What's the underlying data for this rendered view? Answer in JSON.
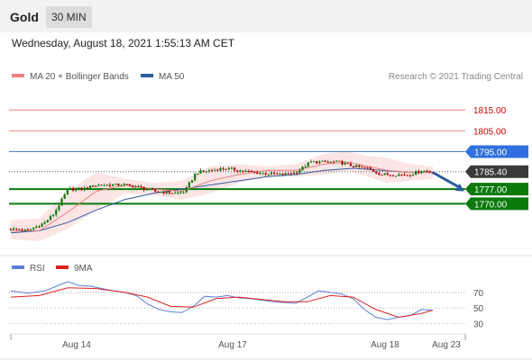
{
  "header": {
    "symbol": "Gold",
    "timeframe": "30 MIN"
  },
  "timestamp": "Wednesday, August 18, 2021 1:55:13 AM CET",
  "legend": {
    "main": [
      {
        "label": "MA 20 + Bollinger Bands",
        "color": "#f08080"
      },
      {
        "label": "MA 50",
        "color": "#2e5d9e"
      }
    ],
    "rsi": [
      {
        "label": "RSI",
        "color": "#5b7fd6"
      },
      {
        "label": "9MA",
        "color": "#e02020"
      }
    ]
  },
  "copyright": "Research © 2021 Trading Central",
  "colors": {
    "resistance": "#f08080",
    "resistance_text": "#cc0000",
    "pivot": "#4a7fd6",
    "support": "#0a7a0a",
    "last": "#3a3a3a",
    "candle_up": "#0a7a0a",
    "candle_down": "#aa0000",
    "arrow": "#2e5d9e"
  },
  "chart_data": [
    {
      "type": "line",
      "title": "",
      "ylim": [
        1752,
        1822
      ],
      "x_ticks": [
        "Aug 14",
        "Aug 17",
        "Aug 18",
        "Aug 23"
      ],
      "levels": [
        {
          "value": 1815.0,
          "label": "1815.00",
          "kind": "resistance"
        },
        {
          "value": 1805.0,
          "label": "1805.00",
          "kind": "resistance"
        },
        {
          "value": 1795.0,
          "label": "1795.00",
          "kind": "pivot"
        },
        {
          "value": 1785.4,
          "label": "1785.40",
          "kind": "last"
        },
        {
          "value": 1777.0,
          "label": "1777.00",
          "kind": "support"
        },
        {
          "value": 1770.0,
          "label": "1770.00",
          "kind": "support"
        }
      ],
      "price_path": [
        [
          0,
          1758
        ],
        [
          6,
          1757
        ],
        [
          12,
          1761
        ],
        [
          15,
          1765
        ],
        [
          18,
          1772
        ],
        [
          20,
          1777
        ],
        [
          25,
          1777
        ],
        [
          30,
          1779
        ],
        [
          40,
          1779
        ],
        [
          45,
          1778
        ],
        [
          50,
          1776
        ],
        [
          58,
          1775
        ],
        [
          61,
          1776
        ],
        [
          65,
          1785
        ],
        [
          75,
          1787
        ],
        [
          85,
          1785
        ],
        [
          95,
          1784
        ],
        [
          100,
          1785
        ],
        [
          105,
          1790
        ],
        [
          115,
          1790
        ],
        [
          120,
          1788
        ],
        [
          125,
          1787
        ],
        [
          130,
          1784
        ],
        [
          140,
          1784
        ],
        [
          144,
          1786
        ],
        [
          148,
          1785
        ]
      ],
      "ma20": [
        [
          0,
          1757
        ],
        [
          10,
          1757
        ],
        [
          20,
          1766
        ],
        [
          30,
          1776
        ],
        [
          40,
          1779
        ],
        [
          50,
          1777
        ],
        [
          60,
          1776
        ],
        [
          70,
          1781
        ],
        [
          80,
          1784
        ],
        [
          90,
          1786
        ],
        [
          100,
          1786
        ],
        [
          110,
          1789
        ],
        [
          118,
          1790
        ],
        [
          125,
          1788
        ],
        [
          132,
          1786
        ],
        [
          140,
          1785
        ],
        [
          148,
          1785
        ]
      ],
      "bollinger_upper": [
        [
          0,
          1762
        ],
        [
          10,
          1763
        ],
        [
          20,
          1776
        ],
        [
          30,
          1785
        ],
        [
          40,
          1782
        ],
        [
          50,
          1780
        ],
        [
          60,
          1781
        ],
        [
          70,
          1788
        ],
        [
          80,
          1789
        ],
        [
          90,
          1788
        ],
        [
          100,
          1789
        ],
        [
          110,
          1794
        ],
        [
          118,
          1795
        ],
        [
          125,
          1793
        ],
        [
          132,
          1792
        ],
        [
          140,
          1789
        ],
        [
          148,
          1788
        ]
      ],
      "bollinger_lower": [
        [
          0,
          1753
        ],
        [
          10,
          1752
        ],
        [
          20,
          1758
        ],
        [
          30,
          1767
        ],
        [
          40,
          1775
        ],
        [
          50,
          1774
        ],
        [
          60,
          1772
        ],
        [
          70,
          1775
        ],
        [
          80,
          1780
        ],
        [
          90,
          1783
        ],
        [
          100,
          1783
        ],
        [
          110,
          1784
        ],
        [
          118,
          1786
        ],
        [
          125,
          1783
        ],
        [
          132,
          1780
        ],
        [
          140,
          1781
        ],
        [
          148,
          1782
        ]
      ],
      "ma50": [
        [
          0,
          1756
        ],
        [
          10,
          1757
        ],
        [
          20,
          1761
        ],
        [
          30,
          1767
        ],
        [
          40,
          1772
        ],
        [
          50,
          1775
        ],
        [
          60,
          1777
        ],
        [
          70,
          1779
        ],
        [
          80,
          1781
        ],
        [
          90,
          1783
        ],
        [
          100,
          1784
        ],
        [
          110,
          1786
        ],
        [
          120,
          1787
        ],
        [
          130,
          1786
        ],
        [
          140,
          1785
        ],
        [
          148,
          1785
        ]
      ],
      "forecast_arrow": {
        "from": [
          148,
          1785
        ],
        "to": [
          159,
          1776
        ]
      }
    },
    {
      "type": "line",
      "title": "",
      "ylim": [
        20,
        85
      ],
      "yticks": [
        70,
        50,
        30
      ],
      "rsi": [
        [
          0,
          72
        ],
        [
          6,
          69
        ],
        [
          12,
          72
        ],
        [
          16,
          78
        ],
        [
          20,
          84
        ],
        [
          24,
          79
        ],
        [
          28,
          78
        ],
        [
          32,
          75
        ],
        [
          36,
          72
        ],
        [
          40,
          70
        ],
        [
          44,
          66
        ],
        [
          48,
          55
        ],
        [
          52,
          48
        ],
        [
          56,
          45
        ],
        [
          60,
          44
        ],
        [
          64,
          52
        ],
        [
          68,
          65
        ],
        [
          72,
          64
        ],
        [
          76,
          66
        ],
        [
          80,
          63
        ],
        [
          84,
          62
        ],
        [
          88,
          60
        ],
        [
          92,
          58
        ],
        [
          96,
          57
        ],
        [
          100,
          56
        ],
        [
          104,
          64
        ],
        [
          108,
          72
        ],
        [
          112,
          70
        ],
        [
          116,
          68
        ],
        [
          120,
          62
        ],
        [
          124,
          48
        ],
        [
          128,
          38
        ],
        [
          132,
          35
        ],
        [
          136,
          38
        ],
        [
          140,
          40
        ],
        [
          144,
          48
        ],
        [
          148,
          47
        ]
      ],
      "ma9": [
        [
          0,
          64
        ],
        [
          10,
          66
        ],
        [
          20,
          76
        ],
        [
          30,
          75
        ],
        [
          40,
          70
        ],
        [
          48,
          64
        ],
        [
          56,
          52
        ],
        [
          64,
          51
        ],
        [
          72,
          62
        ],
        [
          80,
          64
        ],
        [
          88,
          61
        ],
        [
          96,
          58
        ],
        [
          104,
          58
        ],
        [
          112,
          66
        ],
        [
          120,
          64
        ],
        [
          128,
          48
        ],
        [
          136,
          38
        ],
        [
          144,
          43
        ],
        [
          148,
          47
        ]
      ]
    }
  ]
}
